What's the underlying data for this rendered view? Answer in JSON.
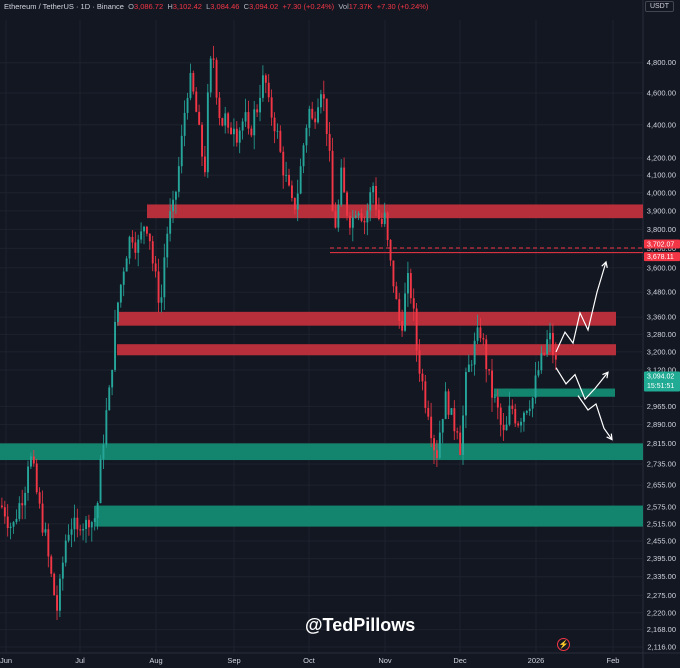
{
  "header": {
    "symbol": "Ethereum / TetherUS · 1D · Binance",
    "open_label": "O",
    "open": "3,086.72",
    "high_label": "H",
    "high": "3,102.42",
    "low_label": "L",
    "low": "3,084.46",
    "close_label": "C",
    "close": "3,094.02",
    "change": "+7.30 (+0.24%)",
    "vol_label": "Vol",
    "vol": "17.37K",
    "vol_change": "+7.30 (+0.24%)",
    "currency": "USDT"
  },
  "watermark": "@TedPillows",
  "colors": {
    "background": "#131722",
    "up": "#26a69a",
    "down": "#f23645",
    "resistance_zone": "#c0303c",
    "support_zone": "#138a72",
    "price_tag": "#22ab94",
    "axis_text": "#d1d4dc",
    "grid": "#1e222d"
  },
  "chart_data": {
    "type": "candlestick",
    "title": "",
    "xlabel": "",
    "ylabel": "",
    "scale": "log",
    "ylim": [
      2116,
      4990
    ],
    "x_ticks": [
      "Jun",
      "Jul",
      "Aug",
      "Sep",
      "Oct",
      "Nov",
      "Dec",
      "2026",
      "Feb"
    ],
    "y_ticks": [
      "4,800.00",
      "4,600.00",
      "4,400.00",
      "4,200.00",
      "4,100.00",
      "4,000.00",
      "3,900.00",
      "3,800.00",
      "3,700.00",
      "3,600.00",
      "3,480.00",
      "3,360.00",
      "3,280.00",
      "3,200.00",
      "3,120.00",
      "2,965.00",
      "2,890.00",
      "2,815.00",
      "2,735.00",
      "2,655.00",
      "2,575.00",
      "2,515.00",
      "2,455.00",
      "2,395.00",
      "2,335.00",
      "2,275.00",
      "2,220.00",
      "2,168.00",
      "2,116.00"
    ],
    "price_markers": [
      {
        "label": "3,702.07",
        "value": 3702,
        "color": "#f23645"
      },
      {
        "label": "3,678.11",
        "value": 3678,
        "color": "#f23645"
      },
      {
        "label": "3,094.02",
        "sublabel": "15:51:51",
        "value": 3094,
        "color": "#22ab94"
      }
    ],
    "resistance_zones": [
      {
        "low": 3860,
        "high": 3935
      },
      {
        "low": 3320,
        "high": 3385
      },
      {
        "low": 3185,
        "high": 3235
      }
    ],
    "support_zones": [
      {
        "low": 3005,
        "high": 3040
      },
      {
        "low": 2750,
        "high": 2815
      },
      {
        "low": 2505,
        "high": 2580
      }
    ],
    "reference_lines": [
      {
        "value": 3702,
        "style": "dashed"
      },
      {
        "value": 3678,
        "style": "solid"
      }
    ],
    "close_path": [
      [
        0,
        2580
      ],
      [
        4,
        2560
      ],
      [
        8,
        2520
      ],
      [
        12,
        2500
      ],
      [
        16,
        2560
      ],
      [
        20,
        2600
      ],
      [
        24,
        2650
      ],
      [
        28,
        2780
      ],
      [
        32,
        2720
      ],
      [
        36,
        2620
      ],
      [
        40,
        2540
      ],
      [
        44,
        2480
      ],
      [
        48,
        2380
      ],
      [
        52,
        2300
      ],
      [
        56,
        2230
      ],
      [
        60,
        2320
      ],
      [
        64,
        2450
      ],
      [
        68,
        2500
      ],
      [
        72,
        2520
      ],
      [
        76,
        2470
      ],
      [
        80,
        2540
      ],
      [
        84,
        2500
      ],
      [
        88,
        2540
      ],
      [
        92,
        2520
      ],
      [
        96,
        2560
      ],
      [
        100,
        2740
      ],
      [
        104,
        2900
      ],
      [
        108,
        3000
      ],
      [
        112,
        3200
      ],
      [
        116,
        3400
      ],
      [
        120,
        3520
      ],
      [
        124,
        3650
      ],
      [
        128,
        3740
      ],
      [
        132,
        3780
      ],
      [
        136,
        3700
      ],
      [
        140,
        3760
      ],
      [
        144,
        3850
      ],
      [
        148,
        3800
      ],
      [
        152,
        3620
      ],
      [
        156,
        3500
      ],
      [
        160,
        3420
      ],
      [
        164,
        3700
      ],
      [
        168,
        3850
      ],
      [
        172,
        3900
      ],
      [
        176,
        4050
      ],
      [
        180,
        4250
      ],
      [
        184,
        4500
      ],
      [
        188,
        4700
      ],
      [
        192,
        4600
      ],
      [
        196,
        4450
      ],
      [
        200,
        4250
      ],
      [
        204,
        4150
      ],
      [
        208,
        4700
      ],
      [
        212,
        4880
      ],
      [
        216,
        4600
      ],
      [
        220,
        4400
      ],
      [
        224,
        4450
      ],
      [
        228,
        4300
      ],
      [
        232,
        4450
      ],
      [
        236,
        4350
      ],
      [
        240,
        4400
      ],
      [
        244,
        4450
      ],
      [
        248,
        4300
      ],
      [
        252,
        4450
      ],
      [
        256,
        4500
      ],
      [
        260,
        4650
      ],
      [
        264,
        4700
      ],
      [
        268,
        4500
      ],
      [
        272,
        4450
      ],
      [
        276,
        4350
      ],
      [
        280,
        4200
      ],
      [
        284,
        4100
      ],
      [
        288,
        4000
      ],
      [
        292,
        3900
      ],
      [
        296,
        3980
      ],
      [
        300,
        4150
      ],
      [
        304,
        4350
      ],
      [
        308,
        4500
      ],
      [
        312,
        4400
      ],
      [
        316,
        4550
      ],
      [
        320,
        4650
      ],
      [
        324,
        4500
      ],
      [
        328,
        4250
      ],
      [
        332,
        3850
      ],
      [
        336,
        3820
      ],
      [
        340,
        4100
      ],
      [
        344,
        3950
      ],
      [
        348,
        3860
      ],
      [
        352,
        3860
      ],
      [
        356,
        3950
      ],
      [
        360,
        3900
      ],
      [
        364,
        3840
      ],
      [
        368,
        3950
      ],
      [
        372,
        4050
      ],
      [
        376,
        3900
      ],
      [
        380,
        3820
      ],
      [
        384,
        3860
      ],
      [
        388,
        3650
      ],
      [
        392,
        3550
      ],
      [
        396,
        3400
      ],
      [
        400,
        3300
      ],
      [
        404,
        3450
      ],
      [
        408,
        3550
      ],
      [
        412,
        3400
      ],
      [
        416,
        3200
      ],
      [
        420,
        3100
      ],
      [
        424,
        3000
      ],
      [
        428,
        2950
      ],
      [
        432,
        2820
      ],
      [
        436,
        2780
      ],
      [
        440,
        2900
      ],
      [
        444,
        3000
      ],
      [
        448,
        2970
      ],
      [
        452,
        2880
      ],
      [
        456,
        2900
      ],
      [
        460,
        2780
      ],
      [
        464,
        3050
      ],
      [
        468,
        3130
      ],
      [
        472,
        3200
      ],
      [
        476,
        3260
      ],
      [
        480,
        3300
      ],
      [
        484,
        3180
      ],
      [
        488,
        3080
      ],
      [
        492,
        3000
      ],
      [
        496,
        2960
      ],
      [
        500,
        2880
      ],
      [
        504,
        2830
      ],
      [
        508,
        2940
      ],
      [
        512,
        2960
      ],
      [
        516,
        2900
      ],
      [
        520,
        2930
      ],
      [
        524,
        2960
      ],
      [
        528,
        2990
      ],
      [
        532,
        3000
      ],
      [
        536,
        3100
      ],
      [
        540,
        3150
      ],
      [
        544,
        3200
      ],
      [
        548,
        3280
      ],
      [
        552,
        3200
      ],
      [
        556,
        3120
      ],
      [
        558,
        3094
      ]
    ],
    "projections": [
      {
        "color": "#ffffff",
        "path": [
          [
            556,
            3200
          ],
          [
            565,
            3290
          ],
          [
            573,
            3240
          ],
          [
            580,
            3380
          ],
          [
            588,
            3300
          ],
          [
            597,
            3480
          ],
          [
            606,
            3630
          ]
        ]
      },
      {
        "color": "#ffffff",
        "path": [
          [
            556,
            3130
          ],
          [
            566,
            3060
          ],
          [
            575,
            3100
          ],
          [
            585,
            2995
          ],
          [
            595,
            3040
          ],
          [
            608,
            3110
          ]
        ]
      },
      {
        "color": "#ffffff",
        "path": [
          [
            578,
            3010
          ],
          [
            588,
            2950
          ],
          [
            596,
            2975
          ],
          [
            604,
            2875
          ],
          [
            612,
            2830
          ]
        ]
      }
    ]
  }
}
